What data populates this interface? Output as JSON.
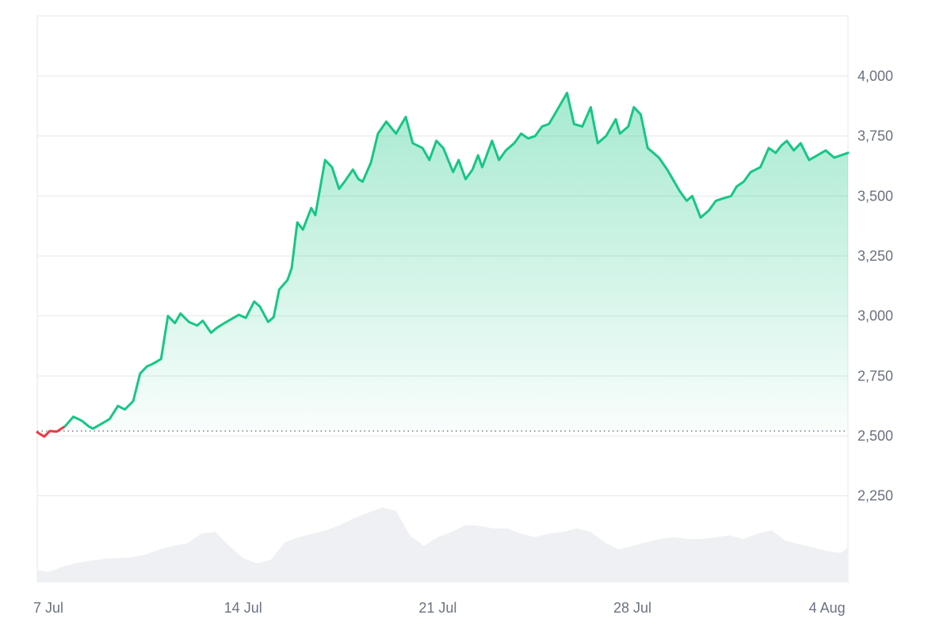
{
  "chart_data": {
    "type": "area",
    "title": "",
    "xlabel": "",
    "ylabel": "",
    "baseline_value": 2520,
    "ylim": [
      2000,
      4250
    ],
    "y_ticks": [
      2250,
      2500,
      2750,
      3000,
      3250,
      3500,
      3750,
      4000
    ],
    "y_tick_labels": [
      "2,250",
      "2,500",
      "2,750",
      "3,000",
      "3,250",
      "3,500",
      "3,750",
      "4,000"
    ],
    "x_ticks": [
      {
        "day": 7,
        "label": "7 Jul"
      },
      {
        "day": 14,
        "label": "14 Jul"
      },
      {
        "day": 21,
        "label": "21 Jul"
      },
      {
        "day": 28,
        "label": "28 Jul"
      },
      {
        "day": 35,
        "label": "4 Aug"
      }
    ],
    "x_range": [
      6.6,
      35.75
    ],
    "grid": true,
    "colors": {
      "up_line": "#16c784",
      "down_line": "#ea3943",
      "area_fill_top": "#16c784",
      "volume_fill": "#eef0f3",
      "grid": "#e5e7eb",
      "tick_text": "#6b7280"
    },
    "price_series": {
      "x": [
        6.6,
        6.85,
        7.05,
        7.3,
        7.6,
        7.9,
        8.2,
        8.45,
        8.6,
        8.9,
        9.2,
        9.5,
        9.75,
        10.05,
        10.3,
        10.55,
        10.75,
        11.05,
        11.3,
        11.55,
        11.75,
        12.05,
        12.35,
        12.55,
        12.85,
        13.05,
        13.3,
        13.55,
        13.85,
        14.1,
        14.4,
        14.6,
        14.9,
        15.1,
        15.3,
        15.6,
        15.75,
        15.95,
        16.15,
        16.45,
        16.6,
        16.95,
        17.2,
        17.45,
        17.65,
        17.95,
        18.15,
        18.3,
        18.6,
        18.85,
        19.15,
        19.5,
        19.85,
        20.1,
        20.45,
        20.7,
        20.95,
        21.2,
        21.55,
        21.75,
        22.0,
        22.25,
        22.45,
        22.6,
        22.95,
        23.2,
        23.45,
        23.75,
        24.0,
        24.25,
        24.5,
        24.75,
        25.0,
        25.3,
        25.65,
        25.9,
        26.2,
        26.5,
        26.75,
        27.05,
        27.4,
        27.55,
        27.85,
        28.05,
        28.3,
        28.55,
        28.95,
        29.25,
        29.4,
        29.7,
        29.95,
        30.15,
        30.45,
        30.75,
        31.0,
        31.25,
        31.55,
        31.75,
        32.0,
        32.25,
        32.6,
        32.9,
        33.15,
        33.35,
        33.55,
        33.8,
        34.05,
        34.35,
        34.65,
        34.95,
        35.25,
        35.5,
        35.75
      ],
      "y": [
        2515,
        2497,
        2520,
        2518,
        2540,
        2580,
        2563,
        2540,
        2530,
        2550,
        2570,
        2625,
        2610,
        2645,
        2760,
        2790,
        2800,
        2820,
        3000,
        2970,
        3010,
        2975,
        2960,
        2980,
        2930,
        2950,
        2968,
        2985,
        3005,
        2992,
        3060,
        3040,
        2975,
        2995,
        3110,
        3150,
        3200,
        3390,
        3360,
        3450,
        3420,
        3650,
        3620,
        3530,
        3560,
        3610,
        3570,
        3560,
        3640,
        3760,
        3810,
        3760,
        3830,
        3720,
        3700,
        3650,
        3730,
        3700,
        3600,
        3650,
        3570,
        3610,
        3670,
        3620,
        3730,
        3650,
        3690,
        3720,
        3760,
        3740,
        3750,
        3790,
        3800,
        3860,
        3930,
        3800,
        3790,
        3870,
        3720,
        3750,
        3820,
        3760,
        3790,
        3870,
        3840,
        3700,
        3660,
        3610,
        3580,
        3520,
        3480,
        3500,
        3410,
        3440,
        3480,
        3490,
        3500,
        3540,
        3560,
        3600,
        3620,
        3700,
        3680,
        3710,
        3730,
        3690,
        3720,
        3650,
        3670,
        3690,
        3660,
        3670,
        3680
      ]
    },
    "volume_series": {
      "x": [
        6.6,
        7.0,
        7.5,
        8.0,
        8.5,
        9.0,
        9.5,
        10.0,
        10.5,
        11.0,
        11.5,
        12.0,
        12.5,
        13.0,
        13.5,
        14.0,
        14.5,
        15.0,
        15.5,
        16.0,
        16.5,
        17.0,
        17.5,
        18.0,
        18.5,
        19.0,
        19.5,
        20.0,
        20.5,
        21.0,
        21.5,
        22.0,
        22.5,
        23.0,
        23.5,
        24.0,
        24.5,
        25.0,
        25.5,
        26.0,
        26.5,
        27.0,
        27.5,
        28.0,
        28.5,
        29.0,
        29.5,
        30.0,
        30.5,
        31.0,
        31.5,
        32.0,
        32.5,
        33.0,
        33.5,
        34.0,
        34.5,
        35.0,
        35.5,
        35.75
      ],
      "y": [
        0.14,
        0.12,
        0.18,
        0.22,
        0.25,
        0.27,
        0.28,
        0.29,
        0.32,
        0.38,
        0.42,
        0.45,
        0.56,
        0.58,
        0.42,
        0.28,
        0.22,
        0.26,
        0.46,
        0.52,
        0.56,
        0.6,
        0.66,
        0.74,
        0.8,
        0.86,
        0.82,
        0.54,
        0.42,
        0.52,
        0.58,
        0.66,
        0.65,
        0.62,
        0.62,
        0.56,
        0.52,
        0.56,
        0.58,
        0.62,
        0.58,
        0.46,
        0.38,
        0.42,
        0.46,
        0.5,
        0.52,
        0.5,
        0.5,
        0.52,
        0.54,
        0.5,
        0.56,
        0.6,
        0.48,
        0.44,
        0.4,
        0.36,
        0.34,
        0.4
      ]
    }
  }
}
